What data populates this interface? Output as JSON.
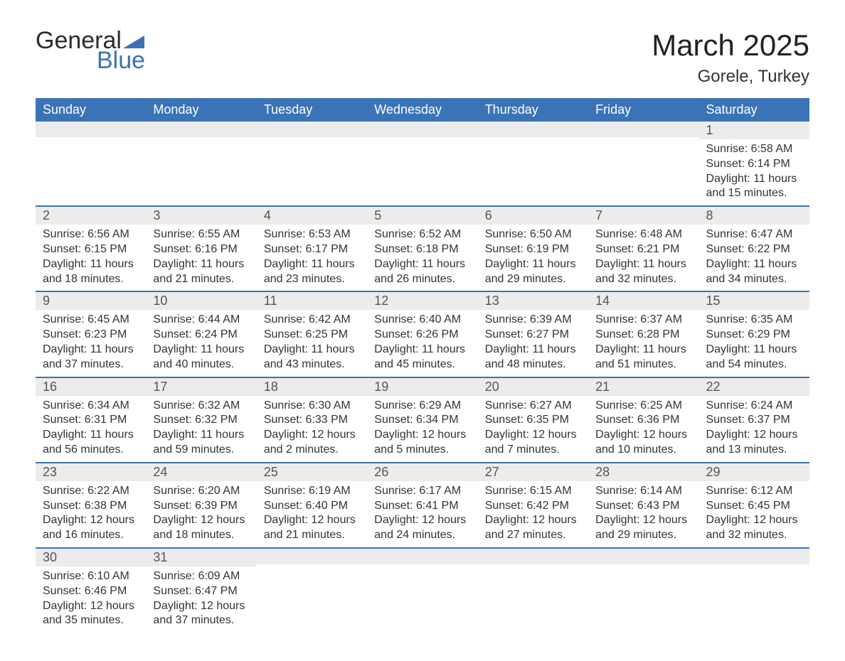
{
  "logo": {
    "word1": "General",
    "word2": "Blue"
  },
  "title": {
    "month": "March 2025",
    "location": "Gorele, Turkey"
  },
  "colors": {
    "header_bg": "#3b74b6",
    "header_text": "#ffffff",
    "daynum_bg": "#ececec",
    "row_border": "#3b74b6",
    "logo_blue": "#3b74b6",
    "body_text": "#333333"
  },
  "layout": {
    "week_starts": "Sunday",
    "columns": 7,
    "rows_rendered": 6,
    "leading_blank_days": 6
  },
  "daynames": [
    "Sunday",
    "Monday",
    "Tuesday",
    "Wednesday",
    "Thursday",
    "Friday",
    "Saturday"
  ],
  "days": [
    {
      "n": 1,
      "sunrise": "6:58 AM",
      "sunset": "6:14 PM",
      "dl_h": 11,
      "dl_m": 15
    },
    {
      "n": 2,
      "sunrise": "6:56 AM",
      "sunset": "6:15 PM",
      "dl_h": 11,
      "dl_m": 18
    },
    {
      "n": 3,
      "sunrise": "6:55 AM",
      "sunset": "6:16 PM",
      "dl_h": 11,
      "dl_m": 21
    },
    {
      "n": 4,
      "sunrise": "6:53 AM",
      "sunset": "6:17 PM",
      "dl_h": 11,
      "dl_m": 23
    },
    {
      "n": 5,
      "sunrise": "6:52 AM",
      "sunset": "6:18 PM",
      "dl_h": 11,
      "dl_m": 26
    },
    {
      "n": 6,
      "sunrise": "6:50 AM",
      "sunset": "6:19 PM",
      "dl_h": 11,
      "dl_m": 29
    },
    {
      "n": 7,
      "sunrise": "6:48 AM",
      "sunset": "6:21 PM",
      "dl_h": 11,
      "dl_m": 32
    },
    {
      "n": 8,
      "sunrise": "6:47 AM",
      "sunset": "6:22 PM",
      "dl_h": 11,
      "dl_m": 34
    },
    {
      "n": 9,
      "sunrise": "6:45 AM",
      "sunset": "6:23 PM",
      "dl_h": 11,
      "dl_m": 37
    },
    {
      "n": 10,
      "sunrise": "6:44 AM",
      "sunset": "6:24 PM",
      "dl_h": 11,
      "dl_m": 40
    },
    {
      "n": 11,
      "sunrise": "6:42 AM",
      "sunset": "6:25 PM",
      "dl_h": 11,
      "dl_m": 43
    },
    {
      "n": 12,
      "sunrise": "6:40 AM",
      "sunset": "6:26 PM",
      "dl_h": 11,
      "dl_m": 45
    },
    {
      "n": 13,
      "sunrise": "6:39 AM",
      "sunset": "6:27 PM",
      "dl_h": 11,
      "dl_m": 48
    },
    {
      "n": 14,
      "sunrise": "6:37 AM",
      "sunset": "6:28 PM",
      "dl_h": 11,
      "dl_m": 51
    },
    {
      "n": 15,
      "sunrise": "6:35 AM",
      "sunset": "6:29 PM",
      "dl_h": 11,
      "dl_m": 54
    },
    {
      "n": 16,
      "sunrise": "6:34 AM",
      "sunset": "6:31 PM",
      "dl_h": 11,
      "dl_m": 56
    },
    {
      "n": 17,
      "sunrise": "6:32 AM",
      "sunset": "6:32 PM",
      "dl_h": 11,
      "dl_m": 59
    },
    {
      "n": 18,
      "sunrise": "6:30 AM",
      "sunset": "6:33 PM",
      "dl_h": 12,
      "dl_m": 2
    },
    {
      "n": 19,
      "sunrise": "6:29 AM",
      "sunset": "6:34 PM",
      "dl_h": 12,
      "dl_m": 5
    },
    {
      "n": 20,
      "sunrise": "6:27 AM",
      "sunset": "6:35 PM",
      "dl_h": 12,
      "dl_m": 7
    },
    {
      "n": 21,
      "sunrise": "6:25 AM",
      "sunset": "6:36 PM",
      "dl_h": 12,
      "dl_m": 10
    },
    {
      "n": 22,
      "sunrise": "6:24 AM",
      "sunset": "6:37 PM",
      "dl_h": 12,
      "dl_m": 13
    },
    {
      "n": 23,
      "sunrise": "6:22 AM",
      "sunset": "6:38 PM",
      "dl_h": 12,
      "dl_m": 16
    },
    {
      "n": 24,
      "sunrise": "6:20 AM",
      "sunset": "6:39 PM",
      "dl_h": 12,
      "dl_m": 18
    },
    {
      "n": 25,
      "sunrise": "6:19 AM",
      "sunset": "6:40 PM",
      "dl_h": 12,
      "dl_m": 21
    },
    {
      "n": 26,
      "sunrise": "6:17 AM",
      "sunset": "6:41 PM",
      "dl_h": 12,
      "dl_m": 24
    },
    {
      "n": 27,
      "sunrise": "6:15 AM",
      "sunset": "6:42 PM",
      "dl_h": 12,
      "dl_m": 27
    },
    {
      "n": 28,
      "sunrise": "6:14 AM",
      "sunset": "6:43 PM",
      "dl_h": 12,
      "dl_m": 29
    },
    {
      "n": 29,
      "sunrise": "6:12 AM",
      "sunset": "6:45 PM",
      "dl_h": 12,
      "dl_m": 32
    },
    {
      "n": 30,
      "sunrise": "6:10 AM",
      "sunset": "6:46 PM",
      "dl_h": 12,
      "dl_m": 35
    },
    {
      "n": 31,
      "sunrise": "6:09 AM",
      "sunset": "6:47 PM",
      "dl_h": 12,
      "dl_m": 37
    }
  ],
  "labels": {
    "sunrise": "Sunrise",
    "sunset": "Sunset",
    "daylight": "Daylight",
    "hours": "hours",
    "and": "and",
    "minutes": "minutes."
  }
}
